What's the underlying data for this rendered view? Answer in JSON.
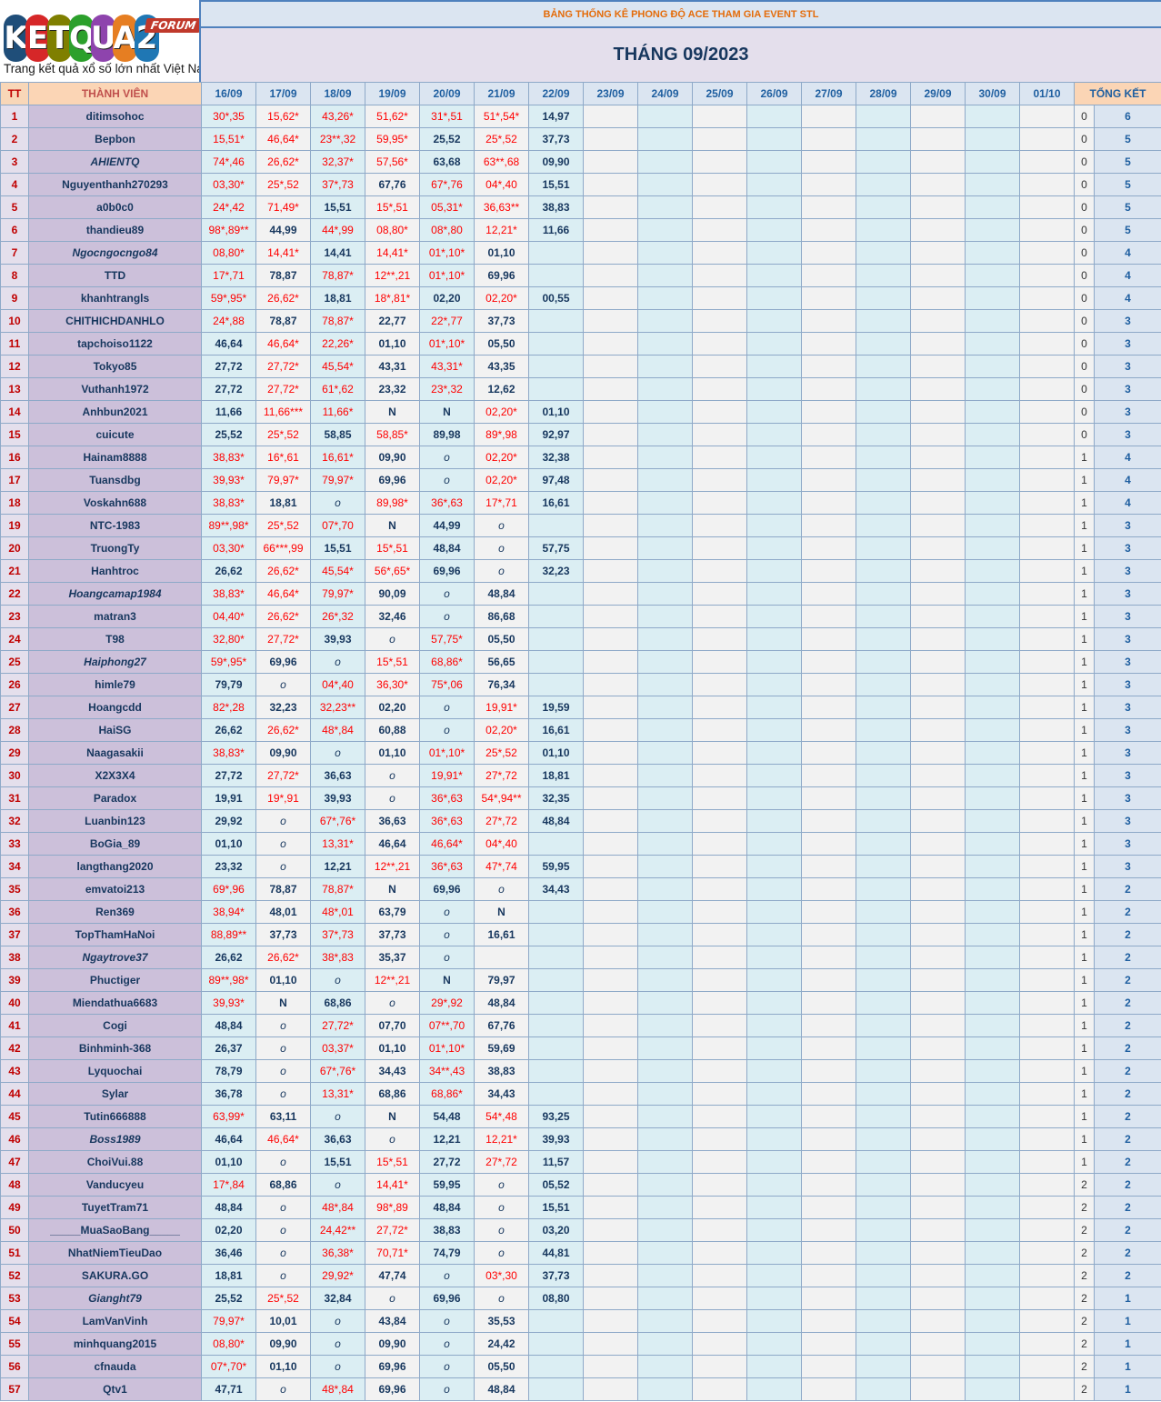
{
  "logo": {
    "letters": [
      "K",
      "E",
      "T",
      "Q",
      "U",
      "A",
      "2"
    ],
    "letter_colors": [
      "#1f4e79",
      "#d62728",
      "#7f7f00",
      "#2ca02c",
      "#8e44ad",
      "#e67e22",
      "#1f77b4"
    ],
    "forum": "FORUM",
    "tagline": "Trang kết quả xổ số lớn nhất Việt Nam"
  },
  "banner": "BẢNG THỐNG KÊ PHONG ĐỘ ACE THAM GIA EVENT STL",
  "month_title": "THÁNG 09/2023",
  "headers": {
    "tt": "TT",
    "member": "THÀNH VIÊN",
    "dates": [
      "16/09",
      "17/09",
      "18/09",
      "19/09",
      "20/09",
      "21/09",
      "22/09",
      "23/09",
      "24/09",
      "25/09",
      "26/09",
      "27/09",
      "28/09",
      "29/09",
      "30/09",
      "01/10"
    ],
    "summary": "TỔNG KẾT"
  },
  "rows": [
    {
      "tt": "1",
      "name": "ditimsohoc",
      "italic": false,
      "cells": [
        "30*,35",
        "15,62*",
        "43,26*",
        "51,62*",
        "31*,51",
        "51*,54*",
        "14,97"
      ],
      "s1": "0",
      "s2": "6"
    },
    {
      "tt": "2",
      "name": "Bepbon",
      "italic": false,
      "cells": [
        "15,51*",
        "46,64*",
        "23**,32",
        "59,95*",
        "25,52",
        "25*,52",
        "37,73"
      ],
      "s1": "0",
      "s2": "5"
    },
    {
      "tt": "3",
      "name": "AHIENTQ",
      "italic": true,
      "cells": [
        "74*,46",
        "26,62*",
        "32,37*",
        "57,56*",
        "63,68",
        "63**,68",
        "09,90"
      ],
      "s1": "0",
      "s2": "5"
    },
    {
      "tt": "4",
      "name": "Nguyenthanh270293",
      "italic": false,
      "cells": [
        "03,30*",
        "25*,52",
        "37*,73",
        "67,76",
        "67*,76",
        "04*,40",
        "15,51"
      ],
      "s1": "0",
      "s2": "5"
    },
    {
      "tt": "5",
      "name": "a0b0c0",
      "italic": false,
      "cells": [
        "24*,42",
        "71,49*",
        "15,51",
        "15*,51",
        "05,31*",
        "36,63**",
        "38,83"
      ],
      "s1": "0",
      "s2": "5"
    },
    {
      "tt": "6",
      "name": "thandieu89",
      "italic": false,
      "cells": [
        "98*,89**",
        "44,99",
        "44*,99",
        "08,80*",
        "08*,80",
        "12,21*",
        "11,66"
      ],
      "s1": "0",
      "s2": "5"
    },
    {
      "tt": "7",
      "name": "Ngocngocngo84",
      "italic": true,
      "cells": [
        "08,80*",
        "14,41*",
        "14,41",
        "14,41*",
        "01*,10*",
        "01,10",
        ""
      ],
      "s1": "0",
      "s2": "4"
    },
    {
      "tt": "8",
      "name": "TTD",
      "italic": false,
      "cells": [
        "17*,71",
        "78,87",
        "78,87*",
        "12**,21",
        "01*,10*",
        "69,96",
        ""
      ],
      "s1": "0",
      "s2": "4"
    },
    {
      "tt": "9",
      "name": "khanhtrangls",
      "italic": false,
      "cells": [
        "59*,95*",
        "26,62*",
        "18,81",
        "18*,81*",
        "02,20",
        "02,20*",
        "00,55"
      ],
      "s1": "0",
      "s2": "4"
    },
    {
      "tt": "10",
      "name": "CHITHICHDANHLO",
      "italic": false,
      "cells": [
        "24*,88",
        "78,87",
        "78,87*",
        "22,77",
        "22*,77",
        "37,73",
        ""
      ],
      "s1": "0",
      "s2": "3"
    },
    {
      "tt": "11",
      "name": "tapchoiso1122",
      "italic": false,
      "cells": [
        "46,64",
        "46,64*",
        "22,26*",
        "01,10",
        "01*,10*",
        "05,50",
        ""
      ],
      "s1": "0",
      "s2": "3"
    },
    {
      "tt": "12",
      "name": "Tokyo85",
      "italic": false,
      "cells": [
        "27,72",
        "27,72*",
        "45,54*",
        "43,31",
        "43,31*",
        "43,35",
        ""
      ],
      "s1": "0",
      "s2": "3"
    },
    {
      "tt": "13",
      "name": "Vuthanh1972",
      "italic": false,
      "cells": [
        "27,72",
        "27,72*",
        "61*,62",
        "23,32",
        "23*,32",
        "12,62",
        ""
      ],
      "s1": "0",
      "s2": "3"
    },
    {
      "tt": "14",
      "name": "Anhbun2021",
      "italic": false,
      "cells": [
        "11,66",
        "11,66***",
        "11,66*",
        "N",
        "N",
        "02,20*",
        "01,10"
      ],
      "s1": "0",
      "s2": "3"
    },
    {
      "tt": "15",
      "name": "cuicute",
      "italic": false,
      "cells": [
        "25,52",
        "25*,52",
        "58,85",
        "58,85*",
        "89,98",
        "89*,98",
        "92,97"
      ],
      "s1": "0",
      "s2": "3"
    },
    {
      "tt": "16",
      "name": "Hainam8888",
      "italic": false,
      "cells": [
        "38,83*",
        "16*,61",
        "16,61*",
        "09,90",
        "o",
        "02,20*",
        "32,38"
      ],
      "s1": "1",
      "s2": "4"
    },
    {
      "tt": "17",
      "name": "Tuansdbg",
      "italic": false,
      "cells": [
        "39,93*",
        "79,97*",
        "79,97*",
        "69,96",
        "o",
        "02,20*",
        "97,48"
      ],
      "s1": "1",
      "s2": "4"
    },
    {
      "tt": "18",
      "name": "Voskahn688",
      "italic": false,
      "cells": [
        "38,83*",
        "18,81",
        "o",
        "89,98*",
        "36*,63",
        "17*,71",
        "16,61"
      ],
      "s1": "1",
      "s2": "4"
    },
    {
      "tt": "19",
      "name": "NTC-1983",
      "italic": false,
      "cells": [
        "89**,98*",
        "25*,52",
        "07*,70",
        "N",
        "44,99",
        "o",
        ""
      ],
      "s1": "1",
      "s2": "3"
    },
    {
      "tt": "20",
      "name": "TruongTy",
      "italic": false,
      "cells": [
        "03,30*",
        "66***,99",
        "15,51",
        "15*,51",
        "48,84",
        "o",
        "57,75"
      ],
      "s1": "1",
      "s2": "3"
    },
    {
      "tt": "21",
      "name": "Hanhtroc",
      "italic": false,
      "cells": [
        "26,62",
        "26,62*",
        "45,54*",
        "56*,65*",
        "69,96",
        "o",
        "32,23"
      ],
      "s1": "1",
      "s2": "3"
    },
    {
      "tt": "22",
      "name": "Hoangcamap1984",
      "italic": true,
      "cells": [
        "38,83*",
        "46,64*",
        "79,97*",
        "90,09",
        "o",
        "48,84",
        ""
      ],
      "s1": "1",
      "s2": "3"
    },
    {
      "tt": "23",
      "name": "matran3",
      "italic": false,
      "cells": [
        "04,40*",
        "26,62*",
        "26*,32",
        "32,46",
        "o",
        "86,68",
        ""
      ],
      "s1": "1",
      "s2": "3"
    },
    {
      "tt": "24",
      "name": "T98",
      "italic": false,
      "cells": [
        "32,80*",
        "27,72*",
        "39,93",
        "o",
        "57,75*",
        "05,50",
        ""
      ],
      "s1": "1",
      "s2": "3"
    },
    {
      "tt": "25",
      "name": "Haiphong27",
      "italic": true,
      "cells": [
        "59*,95*",
        "69,96",
        "o",
        "15*,51",
        "68,86*",
        "56,65",
        ""
      ],
      "s1": "1",
      "s2": "3"
    },
    {
      "tt": "26",
      "name": "himle79",
      "italic": false,
      "cells": [
        "79,79",
        "o",
        "04*,40",
        "36,30*",
        "75*,06",
        "76,34",
        ""
      ],
      "s1": "1",
      "s2": "3"
    },
    {
      "tt": "27",
      "name": "Hoangcdd",
      "italic": false,
      "cells": [
        "82*,28",
        "32,23",
        "32,23**",
        "02,20",
        "o",
        "19,91*",
        "19,59"
      ],
      "s1": "1",
      "s2": "3"
    },
    {
      "tt": "28",
      "name": "HaiSG",
      "italic": false,
      "cells": [
        "26,62",
        "26,62*",
        "48*,84",
        "60,88",
        "o",
        "02,20*",
        "16,61"
      ],
      "s1": "1",
      "s2": "3"
    },
    {
      "tt": "29",
      "name": "Naagasakii",
      "italic": false,
      "cells": [
        "38,83*",
        "09,90",
        "o",
        "01,10",
        "01*,10*",
        "25*,52",
        "01,10"
      ],
      "s1": "1",
      "s2": "3"
    },
    {
      "tt": "30",
      "name": "X2X3X4",
      "italic": false,
      "cells": [
        "27,72",
        "27,72*",
        "36,63",
        "o",
        "19,91*",
        "27*,72",
        "18,81"
      ],
      "s1": "1",
      "s2": "3"
    },
    {
      "tt": "31",
      "name": "Paradox",
      "italic": false,
      "cells": [
        "19,91",
        "19*,91",
        "39,93",
        "o",
        "36*,63",
        "54*,94**",
        "32,35"
      ],
      "s1": "1",
      "s2": "3"
    },
    {
      "tt": "32",
      "name": "Luanbin123",
      "italic": false,
      "cells": [
        "29,92",
        "o",
        "67*,76*",
        "36,63",
        "36*,63",
        "27*,72",
        "48,84"
      ],
      "s1": "1",
      "s2": "3"
    },
    {
      "tt": "33",
      "name": "BoGia_89",
      "italic": false,
      "cells": [
        "01,10",
        "o",
        "13,31*",
        "46,64",
        "46,64*",
        "04*,40",
        ""
      ],
      "s1": "1",
      "s2": "3"
    },
    {
      "tt": "34",
      "name": "langthang2020",
      "italic": false,
      "cells": [
        "23,32",
        "o",
        "12,21",
        "12**,21",
        "36*,63",
        "47*,74",
        "59,95"
      ],
      "s1": "1",
      "s2": "3"
    },
    {
      "tt": "35",
      "name": "emvatoi213",
      "italic": false,
      "cells": [
        "69*,96",
        "78,87",
        "78,87*",
        "N",
        "69,96",
        "o",
        "34,43"
      ],
      "s1": "1",
      "s2": "2"
    },
    {
      "tt": "36",
      "name": "Ren369",
      "italic": false,
      "cells": [
        "38,94*",
        "48,01",
        "48*,01",
        "63,79",
        "o",
        "N",
        ""
      ],
      "s1": "1",
      "s2": "2"
    },
    {
      "tt": "37",
      "name": "TopThamHaNoi",
      "italic": false,
      "cells": [
        "88,89**",
        "37,73",
        "37*,73",
        "37,73",
        "o",
        "16,61",
        ""
      ],
      "s1": "1",
      "s2": "2"
    },
    {
      "tt": "38",
      "name": "Ngaytrove37",
      "italic": true,
      "cells": [
        "26,62",
        "26,62*",
        "38*,83",
        "35,37",
        "o",
        "",
        ""
      ],
      "s1": "1",
      "s2": "2"
    },
    {
      "tt": "39",
      "name": "Phuctiger",
      "italic": false,
      "cells": [
        "89**,98*",
        "01,10",
        "o",
        "12**,21",
        "N",
        "79,97",
        ""
      ],
      "s1": "1",
      "s2": "2"
    },
    {
      "tt": "40",
      "name": "Miendathua6683",
      "italic": false,
      "cells": [
        "39,93*",
        "N",
        "68,86",
        "o",
        "29*,92",
        "48,84",
        ""
      ],
      "s1": "1",
      "s2": "2"
    },
    {
      "tt": "41",
      "name": "Cogi",
      "italic": false,
      "cells": [
        "48,84",
        "o",
        "27,72*",
        "07,70",
        "07**,70",
        "67,76",
        ""
      ],
      "s1": "1",
      "s2": "2"
    },
    {
      "tt": "42",
      "name": "Binhminh-368",
      "italic": false,
      "cells": [
        "26,37",
        "o",
        "03,37*",
        "01,10",
        "01*,10*",
        "59,69",
        ""
      ],
      "s1": "1",
      "s2": "2"
    },
    {
      "tt": "43",
      "name": "Lyquochai",
      "italic": false,
      "cells": [
        "78,79",
        "o",
        "67*,76*",
        "34,43",
        "34**,43",
        "38,83",
        ""
      ],
      "s1": "1",
      "s2": "2"
    },
    {
      "tt": "44",
      "name": "Sylar",
      "italic": false,
      "cells": [
        "36,78",
        "o",
        "13,31*",
        "68,86",
        "68,86*",
        "34,43",
        ""
      ],
      "s1": "1",
      "s2": "2"
    },
    {
      "tt": "45",
      "name": "Tutin666888",
      "italic": false,
      "cells": [
        "63,99*",
        "63,11",
        "o",
        "N",
        "54,48",
        "54*,48",
        "93,25"
      ],
      "s1": "1",
      "s2": "2"
    },
    {
      "tt": "46",
      "name": "Boss1989",
      "italic": true,
      "cells": [
        "46,64",
        "46,64*",
        "36,63",
        "o",
        "12,21",
        "12,21*",
        "39,93"
      ],
      "s1": "1",
      "s2": "2"
    },
    {
      "tt": "47",
      "name": "ChoiVui.88",
      "italic": false,
      "cells": [
        "01,10",
        "o",
        "15,51",
        "15*,51",
        "27,72",
        "27*,72",
        "11,57"
      ],
      "s1": "1",
      "s2": "2"
    },
    {
      "tt": "48",
      "name": "Vanducyeu",
      "italic": false,
      "cells": [
        "17*,84",
        "68,86",
        "o",
        "14,41*",
        "59,95",
        "o",
        "05,52"
      ],
      "s1": "2",
      "s2": "2"
    },
    {
      "tt": "49",
      "name": "TuyetTram71",
      "italic": false,
      "cells": [
        "48,84",
        "o",
        "48*,84",
        "98*,89",
        "48,84",
        "o",
        "15,51"
      ],
      "s1": "2",
      "s2": "2"
    },
    {
      "tt": "50",
      "name": "_____MuaSaoBang_____",
      "italic": false,
      "cells": [
        "02,20",
        "o",
        "24,42**",
        "27,72*",
        "38,83",
        "o",
        "03,20"
      ],
      "s1": "2",
      "s2": "2"
    },
    {
      "tt": "51",
      "name": "NhatNiemTieuDao",
      "italic": false,
      "cells": [
        "36,46",
        "o",
        "36,38*",
        "70,71*",
        "74,79",
        "o",
        "44,81"
      ],
      "s1": "2",
      "s2": "2"
    },
    {
      "tt": "52",
      "name": "SAKURA.GO",
      "italic": false,
      "cells": [
        "18,81",
        "o",
        "29,92*",
        "47,74",
        "o",
        "03*,30",
        "37,73"
      ],
      "s1": "2",
      "s2": "2"
    },
    {
      "tt": "53",
      "name": "Gianght79",
      "italic": true,
      "cells": [
        "25,52",
        "25*,52",
        "32,84",
        "o",
        "69,96",
        "o",
        "08,80"
      ],
      "s1": "2",
      "s2": "1"
    },
    {
      "tt": "54",
      "name": "LamVanVinh",
      "italic": false,
      "cells": [
        "79,97*",
        "10,01",
        "o",
        "43,84",
        "o",
        "35,53",
        ""
      ],
      "s1": "2",
      "s2": "1"
    },
    {
      "tt": "55",
      "name": "minhquang2015",
      "italic": false,
      "cells": [
        "08,80*",
        "09,90",
        "o",
        "09,90",
        "o",
        "24,42",
        ""
      ],
      "s1": "2",
      "s2": "1"
    },
    {
      "tt": "56",
      "name": "cfnauda",
      "italic": false,
      "cells": [
        "07*,70*",
        "01,10",
        "o",
        "69,96",
        "o",
        "05,50",
        ""
      ],
      "s1": "2",
      "s2": "1"
    },
    {
      "tt": "57",
      "name": "Qtv1",
      "italic": false,
      "cells": [
        "47,71",
        "o",
        "48*,84",
        "69,96",
        "o",
        "48,84",
        ""
      ],
      "s1": "2",
      "s2": "1"
    }
  ]
}
